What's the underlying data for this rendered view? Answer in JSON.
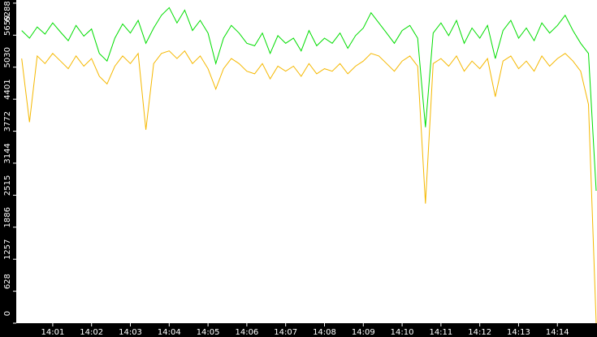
{
  "chart_data": {
    "type": "line",
    "x": [
      0.2,
      0.4,
      0.6,
      0.8,
      1.0,
      1.2,
      1.4,
      1.6,
      1.8,
      2.0,
      2.2,
      2.4,
      2.6,
      2.8,
      3.0,
      3.2,
      3.4,
      3.6,
      3.8,
      4.0,
      4.2,
      4.4,
      4.6,
      4.8,
      5.0,
      5.2,
      5.4,
      5.6,
      5.8,
      6.0,
      6.2,
      6.4,
      6.6,
      6.8,
      7.0,
      7.2,
      7.4,
      7.6,
      7.8,
      8.0,
      8.2,
      8.4,
      8.6,
      8.8,
      9.0,
      9.2,
      9.4,
      9.6,
      9.8,
      10.0,
      10.2,
      10.4,
      10.6,
      10.8,
      11.0,
      11.2,
      11.4,
      11.6,
      11.8,
      12.0,
      12.2,
      12.4,
      12.6,
      12.8,
      13.0,
      13.2,
      13.4,
      13.6,
      13.8,
      14.0,
      14.2,
      14.4,
      14.6,
      14.8,
      15.0
    ],
    "series": [
      {
        "color": "#00dd00",
        "values": [
          5750,
          5600,
          5820,
          5680,
          5900,
          5720,
          5550,
          5850,
          5640,
          5780,
          5300,
          5150,
          5600,
          5880,
          5700,
          5950,
          5500,
          5800,
          6050,
          6200,
          5900,
          6150,
          5750,
          5950,
          5700,
          5100,
          5600,
          5850,
          5700,
          5500,
          5450,
          5700,
          5300,
          5650,
          5500,
          5600,
          5350,
          5750,
          5450,
          5600,
          5500,
          5700,
          5400,
          5650,
          5800,
          6100,
          5900,
          5700,
          5500,
          5750,
          5850,
          5600,
          3850,
          5700,
          5900,
          5650,
          5950,
          5500,
          5800,
          5600,
          5850,
          5200,
          5750,
          5950,
          5600,
          5800,
          5550,
          5900,
          5700,
          5850,
          6050,
          5750,
          5500,
          5300,
          2600
        ]
      },
      {
        "color": "#f5b800",
        "values": [
          5200,
          3950,
          5250,
          5100,
          5300,
          5150,
          5000,
          5250,
          5050,
          5200,
          4850,
          4700,
          5050,
          5250,
          5100,
          5300,
          3800,
          5100,
          5300,
          5350,
          5200,
          5350,
          5100,
          5250,
          5000,
          4600,
          5000,
          5200,
          5100,
          4950,
          4900,
          5100,
          4800,
          5050,
          4950,
          5050,
          4850,
          5100,
          4900,
          5000,
          4950,
          5100,
          4900,
          5050,
          5150,
          5300,
          5250,
          5100,
          4950,
          5150,
          5250,
          5050,
          2350,
          5100,
          5200,
          5050,
          5250,
          4950,
          5150,
          5000,
          5200,
          4450,
          5150,
          5250,
          5000,
          5150,
          4950,
          5250,
          5050,
          5200,
          5300,
          5150,
          4950,
          4300,
          0
        ]
      }
    ],
    "xlim": [
      0.06,
      15.02
    ],
    "xticks": [
      {
        "value": 1,
        "label": "14:01"
      },
      {
        "value": 2,
        "label": "14:02"
      },
      {
        "value": 3,
        "label": "14:03"
      },
      {
        "value": 4,
        "label": "14:04"
      },
      {
        "value": 5,
        "label": "14:05"
      },
      {
        "value": 6,
        "label": "14:06"
      },
      {
        "value": 7,
        "label": "14:07"
      },
      {
        "value": 8,
        "label": "14:08"
      },
      {
        "value": 9,
        "label": "14:09"
      },
      {
        "value": 10,
        "label": "14:10"
      },
      {
        "value": 11,
        "label": "14:11"
      },
      {
        "value": 12,
        "label": "14:12"
      },
      {
        "value": 13,
        "label": "14:13"
      },
      {
        "value": 14,
        "label": "14:14"
      }
    ],
    "ylim": [
      0,
      6350
    ],
    "yticks": [
      0,
      628,
      1257,
      1886,
      2515,
      3144,
      3772,
      4401,
      5030,
      5659,
      6288
    ]
  }
}
